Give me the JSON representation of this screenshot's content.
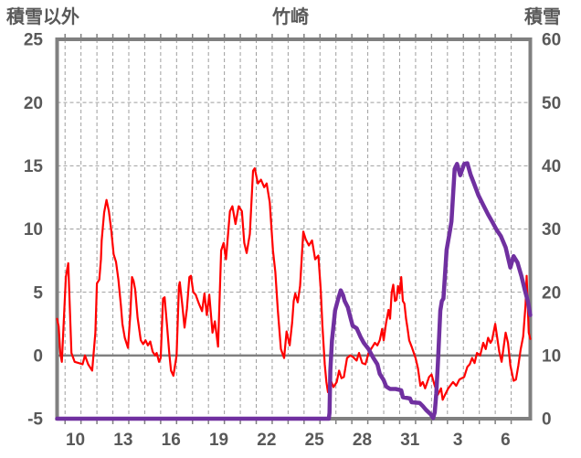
{
  "chart_data": {
    "type": "line",
    "title": "竹崎",
    "left_axis": {
      "label": "積雪以外",
      "min": -5,
      "max": 25,
      "ticks": [
        25,
        20,
        15,
        10,
        5,
        0,
        -5
      ]
    },
    "right_axis": {
      "label": "積雪",
      "min": 0,
      "max": 60,
      "ticks": [
        60,
        50,
        40,
        30,
        20,
        10,
        0
      ]
    },
    "x_axis": {
      "min": 8.85,
      "max": 38.55,
      "labels": [
        {
          "day": 10,
          "text": "10"
        },
        {
          "day": 13,
          "text": "13"
        },
        {
          "day": 16,
          "text": "16"
        },
        {
          "day": 19,
          "text": "19"
        },
        {
          "day": 22,
          "text": "22"
        },
        {
          "day": 25,
          "text": "25"
        },
        {
          "day": 28,
          "text": "28"
        },
        {
          "day": 31,
          "text": "31"
        },
        {
          "day": 34,
          "text": "3"
        },
        {
          "day": 37,
          "text": "6"
        }
      ],
      "gridlines": {
        "first_day": 9.35,
        "step": 1,
        "count": 29
      }
    },
    "zero_line_value": 0,
    "grid_on": true,
    "legend": "none",
    "colors": {
      "grid": "#9E9E9E",
      "frame": "#808080",
      "zero_line": "#808080",
      "text": "#595959",
      "background": "#FFFFFF"
    },
    "series": [
      {
        "name": "積雪以外",
        "axis": "left",
        "color": "#FF0000",
        "width": 2.2,
        "points": [
          [
            8.85,
            2.9
          ],
          [
            8.95,
            2.3
          ],
          [
            9.05,
            0.2
          ],
          [
            9.15,
            -0.5
          ],
          [
            9.4,
            6.2
          ],
          [
            9.55,
            7.3
          ],
          [
            9.75,
            0.2
          ],
          [
            9.95,
            -0.5
          ],
          [
            10.2,
            -0.6
          ],
          [
            10.45,
            -0.7
          ],
          [
            10.6,
            0
          ],
          [
            10.8,
            -0.7
          ],
          [
            11.05,
            -1.2
          ],
          [
            11.25,
            1.8
          ],
          [
            11.35,
            5.7
          ],
          [
            11.5,
            6
          ],
          [
            11.6,
            7.6
          ],
          [
            11.65,
            9.1
          ],
          [
            11.8,
            11.3
          ],
          [
            11.95,
            12.3
          ],
          [
            12.1,
            11.4
          ],
          [
            12.25,
            9.9
          ],
          [
            12.4,
            8
          ],
          [
            12.55,
            7.4
          ],
          [
            12.7,
            6
          ],
          [
            12.85,
            4
          ],
          [
            12.95,
            2.5
          ],
          [
            13.1,
            1.4
          ],
          [
            13.3,
            0.6
          ],
          [
            13.45,
            3.3
          ],
          [
            13.55,
            6.2
          ],
          [
            13.65,
            5.9
          ],
          [
            13.75,
            5.2
          ],
          [
            13.9,
            3
          ],
          [
            14.1,
            1.2
          ],
          [
            14.25,
            0.9
          ],
          [
            14.4,
            1.2
          ],
          [
            14.55,
            0.8
          ],
          [
            14.7,
            1.1
          ],
          [
            14.85,
            0.3
          ],
          [
            15,
            0
          ],
          [
            15.1,
            0.2
          ],
          [
            15.25,
            -0.5
          ],
          [
            15.35,
            -0.2
          ],
          [
            15.5,
            4.5
          ],
          [
            15.6,
            4.6
          ],
          [
            15.75,
            2.4
          ],
          [
            15.9,
            0
          ],
          [
            16,
            -1.2
          ],
          [
            16.15,
            -1.6
          ],
          [
            16.35,
            0
          ],
          [
            16.5,
            5.5
          ],
          [
            16.55,
            5.8
          ],
          [
            16.7,
            4.1
          ],
          [
            16.85,
            2.2
          ],
          [
            17,
            3.7
          ],
          [
            17.15,
            6.2
          ],
          [
            17.25,
            6.3
          ],
          [
            17.4,
            5
          ],
          [
            17.55,
            4.8
          ],
          [
            17.75,
            4.1
          ],
          [
            17.95,
            3.5
          ],
          [
            18.1,
            4.9
          ],
          [
            18.25,
            3.2
          ],
          [
            18.4,
            4.8
          ],
          [
            18.6,
            1.8
          ],
          [
            18.75,
            2.7
          ],
          [
            18.95,
            0.7
          ],
          [
            19.15,
            8.3
          ],
          [
            19.3,
            8.9
          ],
          [
            19.45,
            7.6
          ],
          [
            19.7,
            11.4
          ],
          [
            19.85,
            11.8
          ],
          [
            20.05,
            10.4
          ],
          [
            20.25,
            11.8
          ],
          [
            20.45,
            11.4
          ],
          [
            20.6,
            8.9
          ],
          [
            20.75,
            8.1
          ],
          [
            20.95,
            9.6
          ],
          [
            21.15,
            14.6
          ],
          [
            21.25,
            14.8
          ],
          [
            21.45,
            13.6
          ],
          [
            21.65,
            13.9
          ],
          [
            21.85,
            13.3
          ],
          [
            22,
            13.6
          ],
          [
            22.2,
            12.1
          ],
          [
            22.4,
            8.3
          ],
          [
            22.55,
            6.6
          ],
          [
            22.7,
            3.6
          ],
          [
            22.9,
            0.5
          ],
          [
            23.1,
            -0.2
          ],
          [
            23.25,
            1.9
          ],
          [
            23.45,
            0.8
          ],
          [
            23.6,
            2.6
          ],
          [
            23.7,
            4.3
          ],
          [
            23.8,
            4.9
          ],
          [
            23.95,
            4.2
          ],
          [
            24.1,
            5.5
          ],
          [
            24.3,
            9.8
          ],
          [
            24.45,
            9.2
          ],
          [
            24.65,
            8.7
          ],
          [
            24.85,
            9.1
          ],
          [
            25.05,
            7.6
          ],
          [
            25.25,
            7.9
          ],
          [
            25.4,
            5.2
          ],
          [
            25.5,
            2.4
          ],
          [
            25.65,
            -0.7
          ],
          [
            25.75,
            -2.1
          ],
          [
            25.85,
            -2.9
          ],
          [
            26,
            -1.9
          ],
          [
            26.2,
            -2.5
          ],
          [
            26.4,
            -2.1
          ],
          [
            26.55,
            -1.2
          ],
          [
            26.7,
            -1.8
          ],
          [
            26.85,
            -1.7
          ],
          [
            27.05,
            -0.2
          ],
          [
            27.25,
            0
          ],
          [
            27.4,
            -0.1
          ],
          [
            27.65,
            -0.4
          ],
          [
            27.8,
            0.2
          ],
          [
            28,
            -0.6
          ],
          [
            28.2,
            -0.7
          ],
          [
            28.4,
            0.2
          ],
          [
            28.55,
            0.5
          ],
          [
            28.8,
            1
          ],
          [
            28.95,
            0.8
          ],
          [
            29.1,
            1.2
          ],
          [
            29.25,
            2.1
          ],
          [
            29.35,
            1.2
          ],
          [
            29.5,
            2.6
          ],
          [
            29.65,
            3.6
          ],
          [
            29.75,
            2.9
          ],
          [
            29.85,
            5
          ],
          [
            29.95,
            5.6
          ],
          [
            30.05,
            4.3
          ],
          [
            30.15,
            4.4
          ],
          [
            30.25,
            5.5
          ],
          [
            30.35,
            4.9
          ],
          [
            30.45,
            6.2
          ],
          [
            30.55,
            4.3
          ],
          [
            30.65,
            4.1
          ],
          [
            30.75,
            2.9
          ],
          [
            30.85,
            2.1
          ],
          [
            30.95,
            1.2
          ],
          [
            31.1,
            0.7
          ],
          [
            31.35,
            -0.2
          ],
          [
            31.5,
            -1
          ],
          [
            31.65,
            -2.4
          ],
          [
            31.8,
            -2.1
          ],
          [
            31.95,
            -2.6
          ],
          [
            32.2,
            -1.7
          ],
          [
            32.35,
            -1.5
          ],
          [
            32.55,
            -2.4
          ],
          [
            32.75,
            -3.1
          ],
          [
            32.95,
            -2.6
          ],
          [
            33.05,
            -3.5
          ],
          [
            33.2,
            -3.1
          ],
          [
            33.4,
            -2.6
          ],
          [
            33.7,
            -2.1
          ],
          [
            33.9,
            -2.4
          ],
          [
            34.1,
            -1.9
          ],
          [
            34.4,
            -1.7
          ],
          [
            34.6,
            -0.9
          ],
          [
            34.75,
            -0.7
          ],
          [
            34.9,
            -0.2
          ],
          [
            35.05,
            -0.6
          ],
          [
            35.2,
            0.2
          ],
          [
            35.4,
            0
          ],
          [
            35.6,
            1
          ],
          [
            35.75,
            0.5
          ],
          [
            35.9,
            1.4
          ],
          [
            36.05,
            1
          ],
          [
            36.15,
            1.2
          ],
          [
            36.35,
            2.5
          ],
          [
            36.6,
            0.3
          ],
          [
            36.75,
            -0.5
          ],
          [
            37,
            1.8
          ],
          [
            37.15,
            1
          ],
          [
            37.3,
            -0.8
          ],
          [
            37.5,
            -2
          ],
          [
            37.65,
            -1.9
          ],
          [
            37.8,
            -0.8
          ],
          [
            37.95,
            0.5
          ],
          [
            38.1,
            1.5
          ],
          [
            38.25,
            4
          ],
          [
            38.32,
            6.3
          ],
          [
            38.45,
            1.8
          ],
          [
            38.55,
            1.3
          ]
        ]
      },
      {
        "name": "積雪",
        "axis": "right",
        "color": "#7030A0",
        "width": 4.5,
        "points": [
          [
            8.85,
            0
          ],
          [
            25.9,
            0
          ],
          [
            25.95,
            0.9
          ],
          [
            26,
            7.6
          ],
          [
            26.1,
            12.4
          ],
          [
            26.2,
            14.7
          ],
          [
            26.3,
            17.1
          ],
          [
            26.5,
            19
          ],
          [
            26.65,
            20.3
          ],
          [
            26.8,
            19.5
          ],
          [
            26.9,
            18.6
          ],
          [
            27.1,
            17.6
          ],
          [
            27.25,
            16.1
          ],
          [
            27.4,
            14.7
          ],
          [
            27.65,
            14.3
          ],
          [
            27.9,
            12.9
          ],
          [
            28.1,
            12
          ],
          [
            28.4,
            11
          ],
          [
            28.7,
            9.6
          ],
          [
            28.95,
            8.6
          ],
          [
            29.1,
            7.1
          ],
          [
            29.35,
            6.1
          ],
          [
            29.5,
            5.1
          ],
          [
            29.75,
            4.7
          ],
          [
            30.1,
            4.7
          ],
          [
            30.45,
            4.5
          ],
          [
            30.55,
            3.4
          ],
          [
            31,
            3.2
          ],
          [
            31.1,
            2.6
          ],
          [
            31.6,
            2.5
          ],
          [
            31.8,
            2
          ],
          [
            32,
            1.4
          ],
          [
            32.3,
            0.7
          ],
          [
            32.45,
            0.1
          ],
          [
            32.55,
            1
          ],
          [
            32.65,
            4
          ],
          [
            32.75,
            8.6
          ],
          [
            32.9,
            17.1
          ],
          [
            33,
            18.6
          ],
          [
            33.1,
            19
          ],
          [
            33.3,
            26.7
          ],
          [
            33.5,
            29.6
          ],
          [
            33.6,
            31.2
          ],
          [
            33.8,
            39.5
          ],
          [
            33.95,
            40.3
          ],
          [
            34.15,
            38.5
          ],
          [
            34.4,
            40.3
          ],
          [
            34.6,
            40.4
          ],
          [
            34.8,
            38.6
          ],
          [
            35,
            37.3
          ],
          [
            35.3,
            35.3
          ],
          [
            35.6,
            33.8
          ],
          [
            35.9,
            32.3
          ],
          [
            36.15,
            31.2
          ],
          [
            36.45,
            29.8
          ],
          [
            36.7,
            28.9
          ],
          [
            37,
            27.1
          ],
          [
            37.3,
            23.9
          ],
          [
            37.5,
            25.7
          ],
          [
            37.75,
            24.7
          ],
          [
            38,
            22.5
          ],
          [
            38.2,
            20.4
          ],
          [
            38.4,
            18.5
          ],
          [
            38.55,
            16.4
          ]
        ]
      }
    ]
  }
}
